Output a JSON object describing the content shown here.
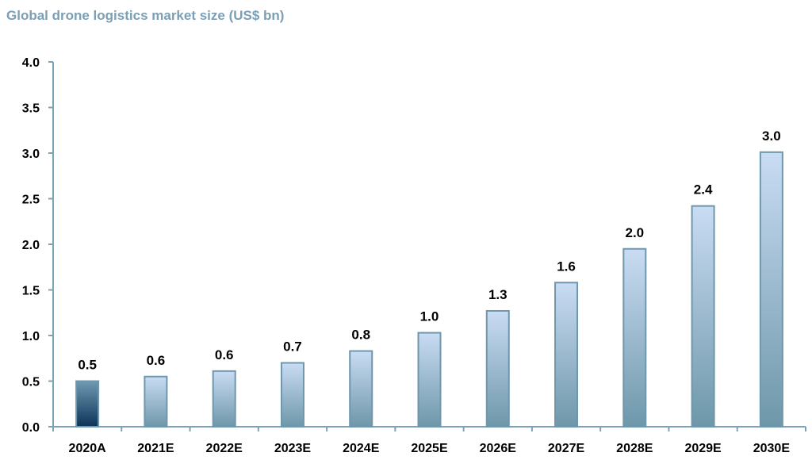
{
  "chart_data": {
    "type": "bar",
    "title": "Global drone logistics market size (US$ bn)",
    "categories": [
      "2020A",
      "2021E",
      "2022E",
      "2023E",
      "2024E",
      "2025E",
      "2026E",
      "2027E",
      "2028E",
      "2029E",
      "2030E"
    ],
    "values": [
      0.5,
      0.55,
      0.61,
      0.7,
      0.83,
      1.03,
      1.27,
      1.58,
      1.95,
      2.42,
      3.01
    ],
    "data_labels": [
      "0.5",
      "0.6",
      "0.6",
      "0.7",
      "0.8",
      "1.0",
      "1.3",
      "1.6",
      "2.0",
      "2.4",
      "3.0"
    ],
    "yticks": [
      "0.0",
      "0.5",
      "1.0",
      "1.5",
      "2.0",
      "2.5",
      "3.0",
      "3.5",
      "4.0"
    ],
    "ylim": [
      0,
      4
    ],
    "grid": false,
    "colors": {
      "highlight_top": "#6f9ab2",
      "highlight_bottom": "#0d3358",
      "bar_top": "#c9dcf3",
      "bar_bottom": "#6e97aa",
      "bar_border": "#6e97ae",
      "axis": "#7ba3b8"
    }
  }
}
